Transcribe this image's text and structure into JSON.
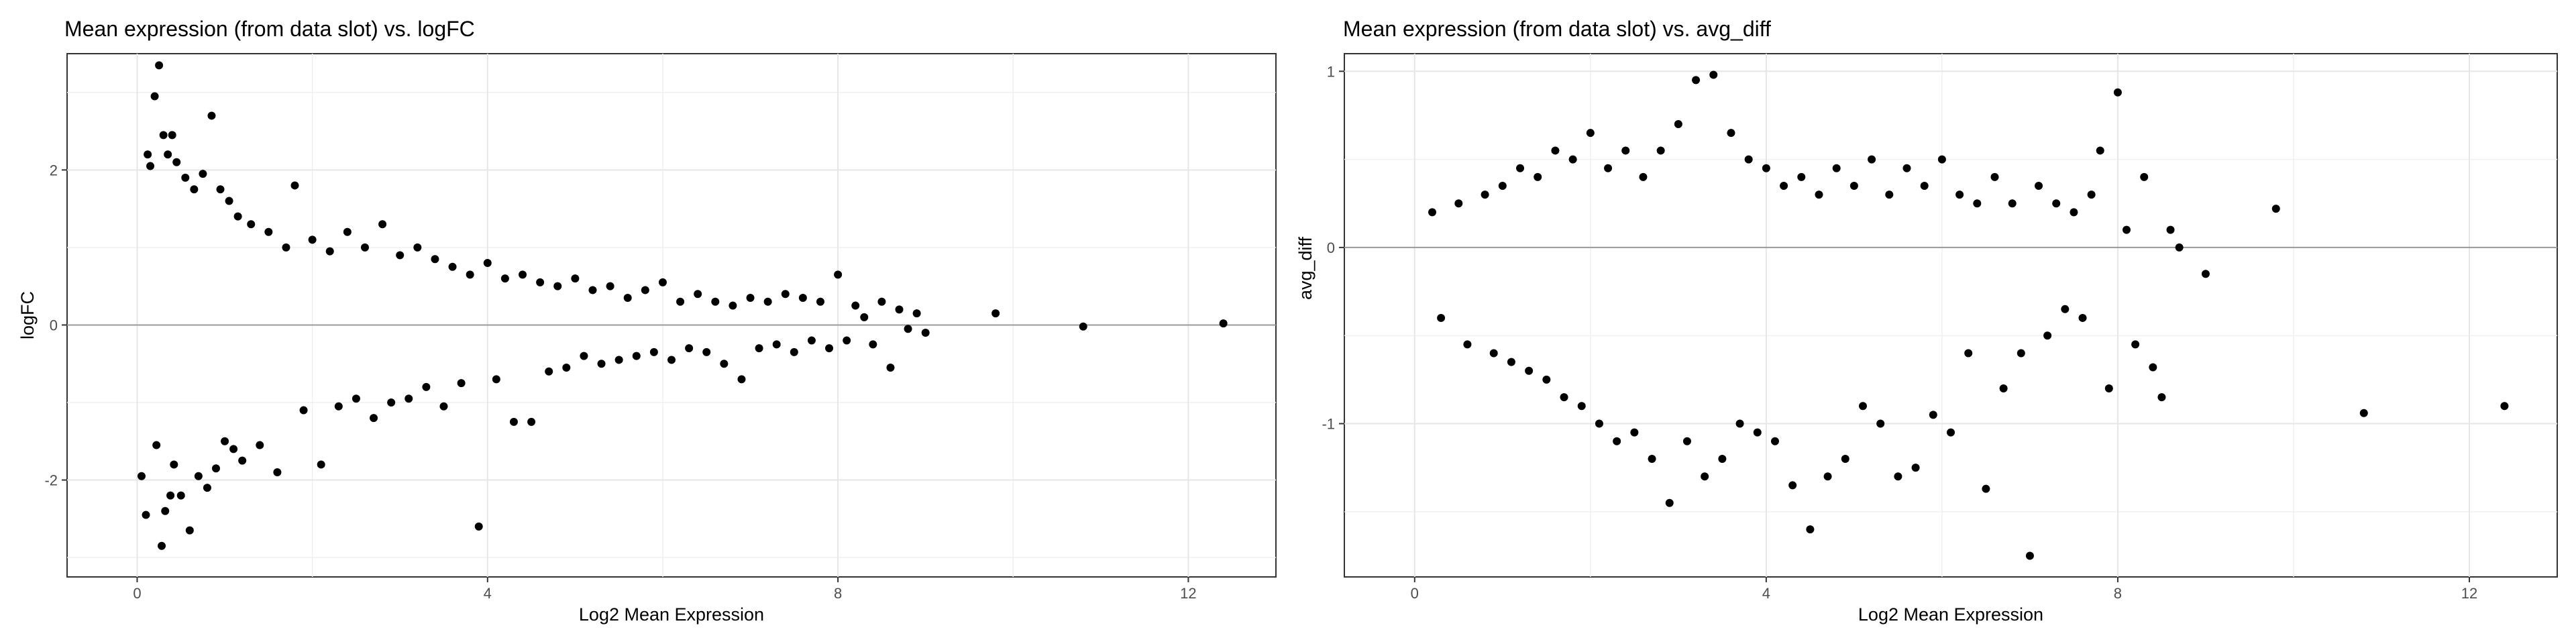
{
  "chart_data": [
    {
      "type": "scatter",
      "title": "Mean expression (from data slot) vs. logFC",
      "xlabel": "Log2 Mean Expression",
      "ylabel": "logFC",
      "xlim": [
        -0.8,
        13.0
      ],
      "ylim": [
        -3.25,
        3.5
      ],
      "xticks": [
        "0",
        "4",
        "8",
        "12"
      ],
      "yticks": [
        "-2",
        "0",
        "2"
      ],
      "reference_line_y": 0,
      "grid": true,
      "background": "#ffffff",
      "point_color": "#000000",
      "points": [
        [
          0.05,
          -1.95
        ],
        [
          0.1,
          -2.45
        ],
        [
          0.12,
          2.2
        ],
        [
          0.15,
          2.05
        ],
        [
          0.2,
          2.95
        ],
        [
          0.22,
          -1.55
        ],
        [
          0.25,
          3.35
        ],
        [
          0.28,
          -2.85
        ],
        [
          0.3,
          2.45
        ],
        [
          0.32,
          -2.4
        ],
        [
          0.35,
          2.2
        ],
        [
          0.38,
          -2.2
        ],
        [
          0.4,
          2.45
        ],
        [
          0.42,
          -1.8
        ],
        [
          0.45,
          2.1
        ],
        [
          0.5,
          -2.2
        ],
        [
          0.55,
          1.9
        ],
        [
          0.6,
          -2.65
        ],
        [
          0.65,
          1.75
        ],
        [
          0.7,
          -1.95
        ],
        [
          0.75,
          1.95
        ],
        [
          0.8,
          -2.1
        ],
        [
          0.85,
          2.7
        ],
        [
          0.9,
          -1.85
        ],
        [
          0.95,
          1.75
        ],
        [
          1.0,
          -1.5
        ],
        [
          1.05,
          1.6
        ],
        [
          1.1,
          -1.6
        ],
        [
          1.15,
          1.4
        ],
        [
          1.2,
          -1.75
        ],
        [
          1.3,
          1.3
        ],
        [
          1.4,
          -1.55
        ],
        [
          1.5,
          1.2
        ],
        [
          1.6,
          -1.9
        ],
        [
          1.7,
          1.0
        ],
        [
          1.8,
          1.8
        ],
        [
          1.9,
          -1.1
        ],
        [
          2.0,
          1.1
        ],
        [
          2.1,
          -1.8
        ],
        [
          2.2,
          0.95
        ],
        [
          2.3,
          -1.05
        ],
        [
          2.4,
          1.2
        ],
        [
          2.5,
          -0.95
        ],
        [
          2.6,
          1.0
        ],
        [
          2.7,
          -1.2
        ],
        [
          2.8,
          1.3
        ],
        [
          2.9,
          -1.0
        ],
        [
          3.0,
          0.9
        ],
        [
          3.1,
          -0.95
        ],
        [
          3.2,
          1.0
        ],
        [
          3.3,
          -0.8
        ],
        [
          3.4,
          0.85
        ],
        [
          3.5,
          -1.05
        ],
        [
          3.6,
          0.75
        ],
        [
          3.7,
          -0.75
        ],
        [
          3.8,
          0.65
        ],
        [
          3.9,
          -2.6
        ],
        [
          4.0,
          0.8
        ],
        [
          4.1,
          -0.7
        ],
        [
          4.2,
          0.6
        ],
        [
          4.3,
          -1.25
        ],
        [
          4.4,
          0.65
        ],
        [
          4.5,
          -1.25
        ],
        [
          4.6,
          0.55
        ],
        [
          4.7,
          -0.6
        ],
        [
          4.8,
          0.5
        ],
        [
          4.9,
          -0.55
        ],
        [
          5.0,
          0.6
        ],
        [
          5.1,
          -0.4
        ],
        [
          5.2,
          0.45
        ],
        [
          5.3,
          -0.5
        ],
        [
          5.4,
          0.5
        ],
        [
          5.5,
          -0.45
        ],
        [
          5.6,
          0.35
        ],
        [
          5.7,
          -0.4
        ],
        [
          5.8,
          0.45
        ],
        [
          5.9,
          -0.35
        ],
        [
          6.0,
          0.55
        ],
        [
          6.1,
          -0.45
        ],
        [
          6.2,
          0.3
        ],
        [
          6.3,
          -0.3
        ],
        [
          6.4,
          0.4
        ],
        [
          6.5,
          -0.35
        ],
        [
          6.6,
          0.3
        ],
        [
          6.7,
          -0.5
        ],
        [
          6.8,
          0.25
        ],
        [
          6.9,
          -0.7
        ],
        [
          7.0,
          0.35
        ],
        [
          7.1,
          -0.3
        ],
        [
          7.2,
          0.3
        ],
        [
          7.3,
          -0.25
        ],
        [
          7.4,
          0.4
        ],
        [
          7.5,
          -0.35
        ],
        [
          7.6,
          0.35
        ],
        [
          7.7,
          -0.2
        ],
        [
          7.8,
          0.3
        ],
        [
          7.9,
          -0.3
        ],
        [
          8.0,
          0.65
        ],
        [
          8.1,
          -0.2
        ],
        [
          8.2,
          0.25
        ],
        [
          8.3,
          0.1
        ],
        [
          8.4,
          -0.25
        ],
        [
          8.5,
          0.3
        ],
        [
          8.6,
          -0.55
        ],
        [
          8.7,
          0.2
        ],
        [
          8.8,
          -0.05
        ],
        [
          8.9,
          0.15
        ],
        [
          9.0,
          -0.1
        ],
        [
          9.8,
          0.15
        ],
        [
          10.8,
          -0.02
        ],
        [
          12.4,
          0.02
        ]
      ]
    },
    {
      "type": "scatter",
      "title": "Mean expression (from data slot) vs. avg_diff",
      "xlabel": "Log2 Mean Expression",
      "ylabel": "avg_diff",
      "xlim": [
        -0.8,
        13.0
      ],
      "ylim": [
        -1.87,
        1.1
      ],
      "xticks": [
        "0",
        "4",
        "8",
        "12"
      ],
      "yticks": [
        "-1",
        "0",
        "1"
      ],
      "reference_line_y": 0,
      "grid": true,
      "background": "#ffffff",
      "point_color": "#000000",
      "points": [
        [
          0.2,
          0.2
        ],
        [
          0.3,
          -0.4
        ],
        [
          0.5,
          0.25
        ],
        [
          0.6,
          -0.55
        ],
        [
          0.8,
          0.3
        ],
        [
          0.9,
          -0.6
        ],
        [
          1.0,
          0.35
        ],
        [
          1.1,
          -0.65
        ],
        [
          1.2,
          0.45
        ],
        [
          1.3,
          -0.7
        ],
        [
          1.4,
          0.4
        ],
        [
          1.5,
          -0.75
        ],
        [
          1.6,
          0.55
        ],
        [
          1.7,
          -0.85
        ],
        [
          1.8,
          0.5
        ],
        [
          1.9,
          -0.9
        ],
        [
          2.0,
          0.65
        ],
        [
          2.1,
          -1.0
        ],
        [
          2.2,
          0.45
        ],
        [
          2.3,
          -1.1
        ],
        [
          2.4,
          0.55
        ],
        [
          2.5,
          -1.05
        ],
        [
          2.6,
          0.4
        ],
        [
          2.7,
          -1.2
        ],
        [
          2.8,
          0.55
        ],
        [
          2.9,
          -1.45
        ],
        [
          3.0,
          0.7
        ],
        [
          3.1,
          -1.1
        ],
        [
          3.2,
          0.95
        ],
        [
          3.3,
          -1.3
        ],
        [
          3.4,
          0.98
        ],
        [
          3.5,
          -1.2
        ],
        [
          3.6,
          0.65
        ],
        [
          3.7,
          -1.0
        ],
        [
          3.8,
          0.5
        ],
        [
          3.9,
          -1.05
        ],
        [
          4.0,
          0.45
        ],
        [
          4.1,
          -1.1
        ],
        [
          4.2,
          0.35
        ],
        [
          4.3,
          -1.35
        ],
        [
          4.4,
          0.4
        ],
        [
          4.5,
          -1.6
        ],
        [
          4.6,
          0.3
        ],
        [
          4.7,
          -1.3
        ],
        [
          4.8,
          0.45
        ],
        [
          4.9,
          -1.2
        ],
        [
          5.0,
          0.35
        ],
        [
          5.1,
          -0.9
        ],
        [
          5.2,
          0.5
        ],
        [
          5.3,
          -1.0
        ],
        [
          5.4,
          0.3
        ],
        [
          5.5,
          -1.3
        ],
        [
          5.6,
          0.45
        ],
        [
          5.7,
          -1.25
        ],
        [
          5.8,
          0.35
        ],
        [
          5.9,
          -0.95
        ],
        [
          6.0,
          0.5
        ],
        [
          6.1,
          -1.05
        ],
        [
          6.2,
          0.3
        ],
        [
          6.3,
          -0.6
        ],
        [
          6.4,
          0.25
        ],
        [
          6.5,
          -1.37
        ],
        [
          6.6,
          0.4
        ],
        [
          6.7,
          -0.8
        ],
        [
          6.8,
          0.25
        ],
        [
          6.9,
          -0.6
        ],
        [
          7.0,
          -1.75
        ],
        [
          7.1,
          0.35
        ],
        [
          7.2,
          -0.5
        ],
        [
          7.3,
          0.25
        ],
        [
          7.4,
          -0.35
        ],
        [
          7.5,
          0.2
        ],
        [
          7.6,
          -0.4
        ],
        [
          7.7,
          0.3
        ],
        [
          7.8,
          0.55
        ],
        [
          7.9,
          -0.8
        ],
        [
          8.0,
          0.88
        ],
        [
          8.1,
          0.1
        ],
        [
          8.2,
          -0.55
        ],
        [
          8.3,
          0.4
        ],
        [
          8.4,
          -0.68
        ],
        [
          8.5,
          -0.85
        ],
        [
          8.6,
          0.1
        ],
        [
          8.7,
          0.0
        ],
        [
          9.0,
          -0.15
        ],
        [
          9.8,
          0.22
        ],
        [
          10.8,
          -0.94
        ],
        [
          12.4,
          -0.9
        ]
      ]
    }
  ]
}
